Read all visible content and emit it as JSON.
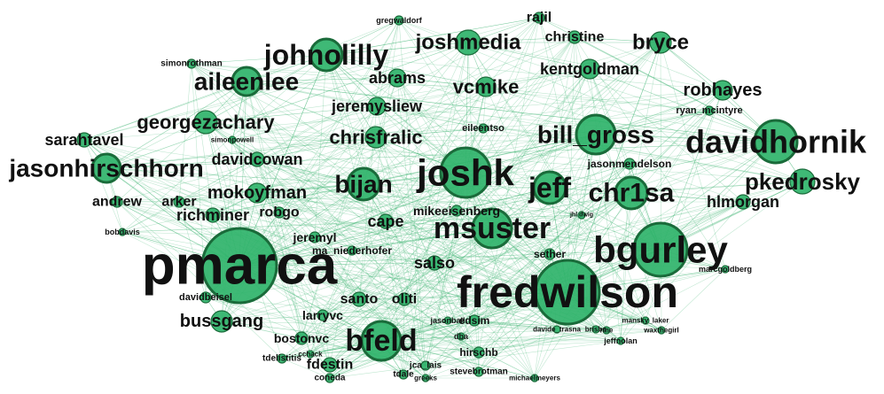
{
  "graph": {
    "edge_color": "#3cb371",
    "node_fill": "#2fb36a",
    "node_stroke": "#1a6b3a",
    "label_color": "#111111",
    "nodes": [
      {
        "id": "pmarca",
        "label": "pmarca",
        "size": 5
      },
      {
        "id": "fredwilson",
        "label": "fredwilson",
        "size": 5
      },
      {
        "id": "bgurley",
        "label": "bgurley",
        "size": 4
      },
      {
        "id": "joshk",
        "label": "joshk",
        "size": 4
      },
      {
        "id": "davidhornik",
        "label": "davidhornik",
        "size": 4
      },
      {
        "id": "johnolilly",
        "label": "johnolilly",
        "size": 4
      },
      {
        "id": "msuster",
        "label": "msuster",
        "size": 4
      },
      {
        "id": "bfeld",
        "label": "bfeld",
        "size": 4
      },
      {
        "id": "bill_gross",
        "label": "bill_gross",
        "size": 3
      },
      {
        "id": "aileenlee",
        "label": "aileenlee",
        "size": 3
      },
      {
        "id": "jasonhirschhorn",
        "label": "jasonhirschhorn",
        "size": 3
      },
      {
        "id": "jeff",
        "label": "jeff",
        "size": 3
      },
      {
        "id": "chr1sa",
        "label": "chr1sa",
        "size": 3
      },
      {
        "id": "bijan",
        "label": "bijan",
        "size": 3
      },
      {
        "id": "pkedrosky",
        "label": "pkedrosky",
        "size": 3
      },
      {
        "id": "joshmedia",
        "label": "joshmedia",
        "size": 2
      },
      {
        "id": "bryce",
        "label": "bryce",
        "size": 2
      },
      {
        "id": "georgezachary",
        "label": "georgezachary",
        "size": 2
      },
      {
        "id": "chrisfralic",
        "label": "chrisfralic",
        "size": 2
      },
      {
        "id": "vcmike",
        "label": "vcmike",
        "size": 2
      },
      {
        "id": "robhayes",
        "label": "robhayes",
        "size": 2
      },
      {
        "id": "mokoyfman",
        "label": "mokoyfman",
        "size": 2
      },
      {
        "id": "kentgoldman",
        "label": "kentgoldman",
        "size": 2
      },
      {
        "id": "abrams",
        "label": "abrams",
        "size": 2
      },
      {
        "id": "jeremysliew",
        "label": "jeremysliew",
        "size": 2
      },
      {
        "id": "sarahtavel",
        "label": "sarahtavel",
        "size": 1
      },
      {
        "id": "davidcowan",
        "label": "davidcowan",
        "size": 1
      },
      {
        "id": "hlmorgan",
        "label": "hlmorgan",
        "size": 1
      },
      {
        "id": "richminer",
        "label": "richminer",
        "size": 1
      },
      {
        "id": "bussgang",
        "label": "bussgang",
        "size": 2
      },
      {
        "id": "rajil",
        "label": "rajil",
        "size": 1
      },
      {
        "id": "christine",
        "label": "christine",
        "size": 1
      },
      {
        "id": "andrew",
        "label": "andrew",
        "size": 1
      },
      {
        "id": "arker",
        "label": "arker",
        "size": 1
      },
      {
        "id": "robgo",
        "label": "robgo",
        "size": 1
      },
      {
        "id": "cape",
        "label": "cape",
        "size": 1
      },
      {
        "id": "mikeeisenberg",
        "label": "mikeeisenberg",
        "size": 1
      },
      {
        "id": "jasonmendelson",
        "label": "jasonmendelson",
        "size": 1
      },
      {
        "id": "ryan_mcintyre",
        "label": "ryan_mcintyre",
        "size": 1
      },
      {
        "id": "eileentso",
        "label": "eileentso",
        "size": 1
      },
      {
        "id": "jeremyl",
        "label": "jeremyl",
        "size": 1
      },
      {
        "id": "ma_niederhofer",
        "label": "ma_niederhofer",
        "size": 1
      },
      {
        "id": "salso",
        "label": "salso",
        "size": 1
      },
      {
        "id": "sether",
        "label": "sether",
        "size": 1
      },
      {
        "id": "santo",
        "label": "santo",
        "size": 1
      },
      {
        "id": "oliti",
        "label": "oliti",
        "size": 1
      },
      {
        "id": "larryvc",
        "label": "larryvc",
        "size": 1
      },
      {
        "id": "edsim",
        "label": "edsim",
        "size": 1
      },
      {
        "id": "davidbeisel",
        "label": "davidbeisel",
        "size": 1
      },
      {
        "id": "bostonvc",
        "label": "bostonvc",
        "size": 1
      },
      {
        "id": "hirschb",
        "label": "hirschb",
        "size": 1
      },
      {
        "id": "fdestin",
        "label": "fdestin",
        "size": 1
      },
      {
        "id": "tdelistitis",
        "label": "tdelistitis",
        "size": 1
      },
      {
        "id": "simonrothman",
        "label": "simonrothman",
        "size": 1
      },
      {
        "id": "gregwaldorf",
        "label": "gregwaldorf",
        "size": 1
      },
      {
        "id": "bobdavis",
        "label": "bobdavis",
        "size": 1
      },
      {
        "id": "marcgoldberg",
        "label": "marcgoldberg",
        "size": 1
      },
      {
        "id": "jasonball",
        "label": "jasonball",
        "size": 1
      },
      {
        "id": "davide_trasna",
        "label": "davide_trasna",
        "size": 1
      },
      {
        "id": "brisbo",
        "label": "brisbo",
        "size": 1
      },
      {
        "id": "mansky_laker",
        "label": "mansky_laker",
        "size": 1
      },
      {
        "id": "waxthegirl",
        "label": "waxthegirl",
        "size": 1
      },
      {
        "id": "jeffnolan",
        "label": "jeffnolan",
        "size": 1
      },
      {
        "id": "stevebrotman",
        "label": "stevebrotman",
        "size": 1
      },
      {
        "id": "jca_lais",
        "label": "jca_lais",
        "size": 1
      },
      {
        "id": "tdale",
        "label": "tdale",
        "size": 1
      },
      {
        "id": "cchack",
        "label": "cchack",
        "size": 1
      },
      {
        "id": "coneda",
        "label": "coneda",
        "size": 1
      },
      {
        "id": "michaelmeyers",
        "label": "michaelmeyers",
        "size": 1
      },
      {
        "id": "simonpowell",
        "label": "simonpowell",
        "size": 1
      },
      {
        "id": "jhl_dwig",
        "label": "jhl dwig",
        "size": 1
      },
      {
        "id": "rme",
        "label": "rme",
        "size": 1
      },
      {
        "id": "dba",
        "label": "dba",
        "size": 1
      },
      {
        "id": "greeks",
        "label": "greeks",
        "size": 1
      }
    ],
    "edges": [
      [
        "pmarca",
        "fredwilson"
      ],
      [
        "pmarca",
        "bgurley"
      ],
      [
        "pmarca",
        "joshk"
      ],
      [
        "pmarca",
        "msuster"
      ],
      [
        "pmarca",
        "bfeld"
      ],
      [
        "pmarca",
        "johnolilly"
      ],
      [
        "pmarca",
        "aileenlee"
      ],
      [
        "pmarca",
        "jasonhirschhorn"
      ],
      [
        "pmarca",
        "bijan"
      ],
      [
        "pmarca",
        "jeff"
      ],
      [
        "pmarca",
        "chr1sa"
      ],
      [
        "pmarca",
        "davidhornik"
      ],
      [
        "pmarca",
        "bill_gross"
      ],
      [
        "pmarca",
        "georgezachary"
      ],
      [
        "pmarca",
        "mokoyfman"
      ],
      [
        "pmarca",
        "richminer"
      ],
      [
        "pmarca",
        "bussgang"
      ],
      [
        "pmarca",
        "sarahtavel"
      ],
      [
        "pmarca",
        "andrew"
      ],
      [
        "pmarca",
        "bobdavis"
      ],
      [
        "pmarca",
        "davidbeisel"
      ],
      [
        "pmarca",
        "robgo"
      ],
      [
        "pmarca",
        "jeremyl"
      ],
      [
        "pmarca",
        "salso"
      ],
      [
        "pmarca",
        "bostonvc"
      ],
      [
        "fredwilson",
        "bgurley"
      ],
      [
        "fredwilson",
        "joshk"
      ],
      [
        "fredwilson",
        "msuster"
      ],
      [
        "fredwilson",
        "bfeld"
      ],
      [
        "fredwilson",
        "davidhornik"
      ],
      [
        "fredwilson",
        "jeff"
      ],
      [
        "fredwilson",
        "chr1sa"
      ],
      [
        "fredwilson",
        "pkedrosky"
      ],
      [
        "fredwilson",
        "bill_gross"
      ],
      [
        "fredwilson",
        "hlmorgan"
      ],
      [
        "fredwilson",
        "edsim"
      ],
      [
        "fredwilson",
        "sether"
      ],
      [
        "fredwilson",
        "jeffnolan"
      ],
      [
        "fredwilson",
        "marcgoldberg"
      ],
      [
        "fredwilson",
        "bryce"
      ],
      [
        "fredwilson",
        "santo"
      ],
      [
        "fredwilson",
        "oliti"
      ],
      [
        "fredwilson",
        "hirschb"
      ],
      [
        "fredwilson",
        "stevebrotman"
      ],
      [
        "fredwilson",
        "waxthegirl"
      ],
      [
        "bgurley",
        "davidhornik"
      ],
      [
        "bgurley",
        "pkedrosky"
      ],
      [
        "bgurley",
        "chr1sa"
      ],
      [
        "bgurley",
        "jeff"
      ],
      [
        "bgurley",
        "joshk"
      ],
      [
        "bgurley",
        "bill_gross"
      ],
      [
        "bgurley",
        "msuster"
      ],
      [
        "bgurley",
        "robhayes"
      ],
      [
        "bgurley",
        "marcgoldberg"
      ],
      [
        "bgurley",
        "jasonmendelson"
      ],
      [
        "joshk",
        "johnolilly"
      ],
      [
        "joshk",
        "bill_gross"
      ],
      [
        "joshk",
        "chrisfralic"
      ],
      [
        "joshk",
        "bijan"
      ],
      [
        "joshk",
        "msuster"
      ],
      [
        "joshk",
        "jeff"
      ],
      [
        "joshk",
        "vcmike"
      ],
      [
        "joshk",
        "jeremysliew"
      ],
      [
        "joshk",
        "joshmedia"
      ],
      [
        "joshk",
        "bfeld"
      ],
      [
        "davidhornik",
        "bill_gross"
      ],
      [
        "davidhornik",
        "pkedrosky"
      ],
      [
        "davidhornik",
        "bryce"
      ],
      [
        "davidhornik",
        "robhayes"
      ],
      [
        "davidhornik",
        "christine"
      ],
      [
        "davidhornik",
        "kentgoldman"
      ],
      [
        "davidhornik",
        "jasonhirschhorn"
      ],
      [
        "davidhornik",
        "aileenlee"
      ],
      [
        "davidhornik",
        "rajil"
      ],
      [
        "davidhornik",
        "ryan_mcintyre"
      ],
      [
        "johnolilly",
        "aileenlee"
      ],
      [
        "johnolilly",
        "abrams"
      ],
      [
        "johnolilly",
        "joshmedia"
      ],
      [
        "johnolilly",
        "simonrothman"
      ],
      [
        "johnolilly",
        "gregwaldorf"
      ],
      [
        "johnolilly",
        "jeremysliew"
      ],
      [
        "johnolilly",
        "georgezachary"
      ],
      [
        "johnolilly",
        "chrisfralic"
      ],
      [
        "johnolilly",
        "vcmike"
      ],
      [
        "johnolilly",
        "rajil"
      ],
      [
        "msuster",
        "bfeld"
      ],
      [
        "msuster",
        "mikeeisenberg"
      ],
      [
        "msuster",
        "cape"
      ],
      [
        "msuster",
        "salso"
      ],
      [
        "msuster",
        "ma_niederhofer"
      ],
      [
        "bfeld",
        "bussgang"
      ],
      [
        "bfeld",
        "larryvc"
      ],
      [
        "bfeld",
        "edsim"
      ],
      [
        "bfeld",
        "hirschb"
      ],
      [
        "bfeld",
        "fdestin"
      ],
      [
        "bfeld",
        "bostonvc"
      ],
      [
        "bfeld",
        "tdelistitis"
      ],
      [
        "bfeld",
        "jca_lais"
      ],
      [
        "bfeld",
        "tdale"
      ],
      [
        "bfeld",
        "coneda"
      ],
      [
        "bfeld",
        "cchack"
      ],
      [
        "bfeld",
        "dba"
      ],
      [
        "bfeld",
        "jasonball"
      ],
      [
        "bfeld",
        "michaelmeyers"
      ],
      [
        "bfeld",
        "greeks"
      ],
      [
        "aileenlee",
        "georgezachary"
      ],
      [
        "aileenlee",
        "sarahtavel"
      ],
      [
        "aileenlee",
        "jasonhirschhorn"
      ],
      [
        "aileenlee",
        "abrams"
      ],
      [
        "aileenlee",
        "simonpowell"
      ],
      [
        "jasonhirschhorn",
        "sarahtavel"
      ],
      [
        "jasonhirschhorn",
        "davidcowan"
      ],
      [
        "jasonhirschhorn",
        "andrew"
      ],
      [
        "jasonhirschhorn",
        "chrisfralic"
      ],
      [
        "jasonhirschhorn",
        "bijan"
      ],
      [
        "jeff",
        "chr1sa"
      ],
      [
        "jeff",
        "bijan"
      ],
      [
        "jeff",
        "jasonmendelson"
      ],
      [
        "jeff",
        "mikeeisenberg"
      ],
      [
        "chr1sa",
        "hlmorgan"
      ],
      [
        "chr1sa",
        "pkedrosky"
      ],
      [
        "chr1sa",
        "jhl_dwig"
      ],
      [
        "bijan",
        "mokoyfman"
      ],
      [
        "bijan",
        "davidcowan"
      ],
      [
        "bijan",
        "cape"
      ],
      [
        "joshmedia",
        "bryce"
      ],
      [
        "joshmedia",
        "kentgoldman"
      ],
      [
        "joshmedia",
        "christine"
      ],
      [
        "joshmedia",
        "vcmike"
      ],
      [
        "bryce",
        "robhayes"
      ],
      [
        "bryce",
        "christine"
      ],
      [
        "georgezachary",
        "davidcowan"
      ],
      [
        "georgezachary",
        "jeremysliew"
      ],
      [
        "chrisfralic",
        "davidcowan"
      ],
      [
        "chrisfralic",
        "eileentso"
      ],
      [
        "vcmike",
        "kentgoldman"
      ],
      [
        "vcmike",
        "abrams"
      ],
      [
        "mokoyfman",
        "richminer"
      ],
      [
        "mokoyfman",
        "robgo"
      ],
      [
        "richminer",
        "arker"
      ],
      [
        "bussgang",
        "davidbeisel"
      ],
      [
        "bussgang",
        "larryvc"
      ],
      [
        "larryvc",
        "santo"
      ],
      [
        "santo",
        "oliti"
      ],
      [
        "edsim",
        "davide_trasna"
      ],
      [
        "edsim",
        "brisbo"
      ],
      [
        "brisbo",
        "mansky_laker"
      ],
      [
        "mansky_laker",
        "waxthegirl"
      ],
      [
        "rme",
        "jeffnolan"
      ],
      [
        "hirschb",
        "stevebrotman"
      ]
    ]
  }
}
